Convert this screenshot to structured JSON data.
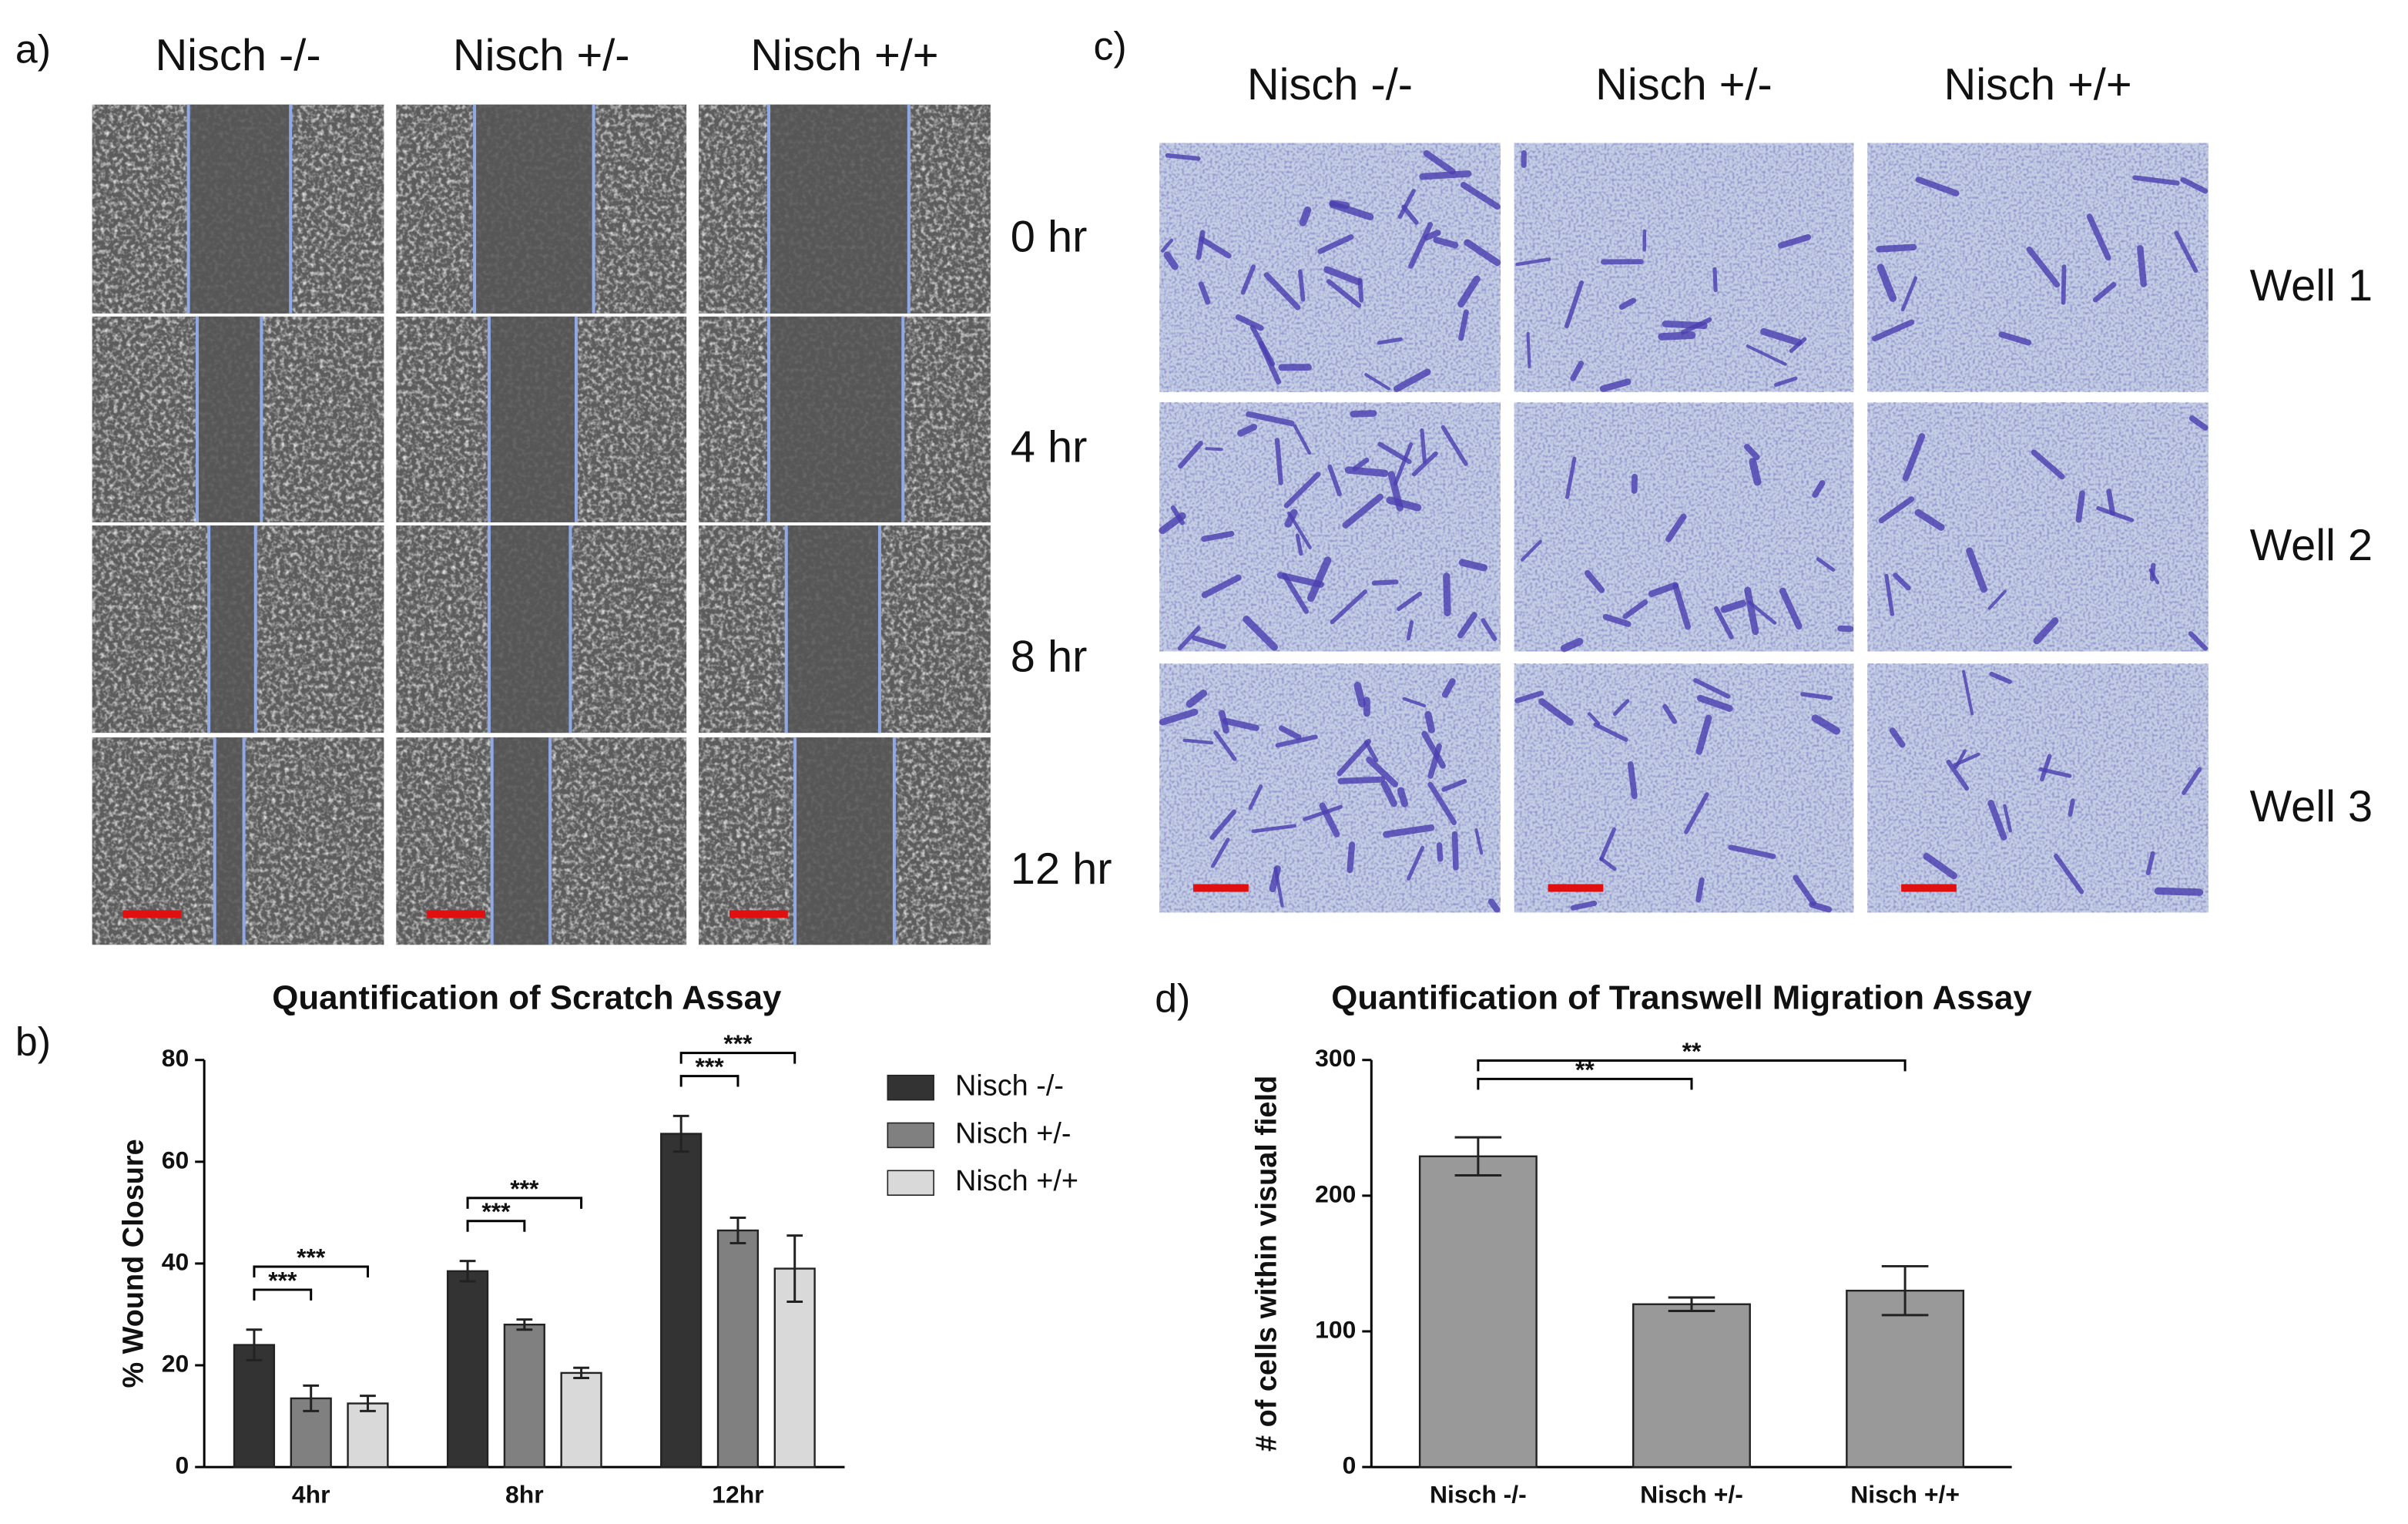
{
  "panel_a": {
    "label": "a)",
    "columns": [
      "Nisch -/-",
      "Nisch +/-",
      "Nisch +/+"
    ],
    "rows": [
      "0 hr",
      "4 hr",
      "8 hr",
      "12 hr"
    ]
  },
  "panel_c": {
    "label": "c)",
    "columns": [
      "Nisch -/-",
      "Nisch +/-",
      "Nisch +/+"
    ],
    "rows": [
      "Well 1",
      "Well 2",
      "Well 3"
    ]
  },
  "chart_data": [
    {
      "type": "bar",
      "label": "b)",
      "title": "Quantification of Scratch  Assay",
      "y_label": "% Wound Closure",
      "categories": [
        "4hr",
        "8hr",
        "12hr"
      ],
      "series": [
        {
          "name": "Nisch -/-",
          "color": "#333333",
          "values": [
            24,
            38.5,
            65.5
          ],
          "errors": [
            3,
            2,
            3.5
          ]
        },
        {
          "name": "Nisch +/-",
          "color": "#808080",
          "values": [
            13.5,
            28,
            46.5
          ],
          "errors": [
            2.5,
            1,
            2.5
          ]
        },
        {
          "name": "Nisch +/+",
          "color": "#d9d9d9",
          "values": [
            12.5,
            18.5,
            39
          ],
          "errors": [
            1.5,
            1,
            6.5
          ]
        }
      ],
      "ylim": [
        0,
        80
      ],
      "yticks": [
        0,
        20,
        40,
        60,
        80
      ],
      "legend": "right",
      "significance": [
        {
          "category": "4hr",
          "pair": [
            "Nisch -/-",
            "Nisch +/-"
          ],
          "label": "***"
        },
        {
          "category": "4hr",
          "pair": [
            "Nisch -/-",
            "Nisch +/+"
          ],
          "label": "***"
        },
        {
          "category": "8hr",
          "pair": [
            "Nisch -/-",
            "Nisch +/-"
          ],
          "label": "***"
        },
        {
          "category": "8hr",
          "pair": [
            "Nisch -/-",
            "Nisch +/+"
          ],
          "label": "***"
        },
        {
          "category": "12hr",
          "pair": [
            "Nisch -/-",
            "Nisch +/-"
          ],
          "label": "***"
        },
        {
          "category": "12hr",
          "pair": [
            "Nisch -/-",
            "Nisch +/+"
          ],
          "label": "***"
        }
      ]
    },
    {
      "type": "bar",
      "label": "d)",
      "title": "Quantification of  Transwell Migration  Assay",
      "y_label": "# of cells within visual field",
      "categories": [
        "Nisch -/-",
        "Nisch +/-",
        "Nisch +/+"
      ],
      "series": [
        {
          "color": "#999999",
          "values": [
            229,
            120,
            130
          ],
          "errors": [
            14,
            5,
            18
          ]
        }
      ],
      "ylim": [
        0,
        300
      ],
      "yticks": [
        0,
        100,
        200,
        300
      ],
      "significance": [
        {
          "pair": [
            "Nisch -/-",
            "Nisch +/-"
          ],
          "label": "**"
        },
        {
          "pair": [
            "Nisch -/-",
            "Nisch +/+"
          ],
          "label": "**"
        }
      ]
    }
  ]
}
